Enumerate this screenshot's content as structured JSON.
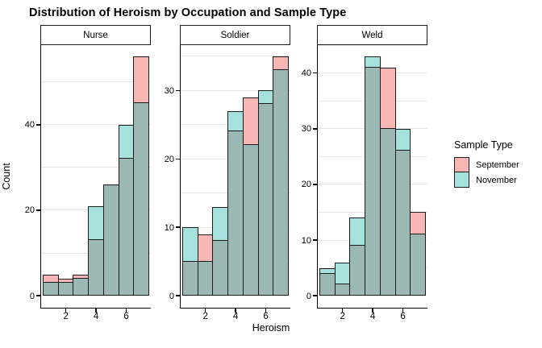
{
  "title": "Distribution of Heroism by Occupation and Sample Type",
  "axes": {
    "x_title": "Heroism",
    "y_title": "Count",
    "x_ticks": [
      2,
      4,
      6
    ]
  },
  "legend": {
    "title": "Sample Type",
    "items": [
      {
        "label": "September",
        "color": "#F8B6B5"
      },
      {
        "label": "November",
        "color": "#A5E1DD"
      }
    ]
  },
  "colors": {
    "september": "#F8B6B5",
    "november": "#A5E1DD",
    "overlap": "#9CB8B4",
    "bar_border": "#1a1a1a",
    "axis_line": "#000000",
    "gridline": "#E7E7E7",
    "strip_background": "#ffffff"
  },
  "chart_data": {
    "type": "bar",
    "subtype": "overlaid-histogram",
    "title": "Distribution of Heroism by Occupation and Sample Type",
    "xlabel": "Heroism",
    "ylabel": "Count",
    "legend_position": "right",
    "grid": "on",
    "x": [
      1,
      2,
      3,
      4,
      5,
      6,
      7
    ],
    "x_ticks": [
      2,
      4,
      6
    ],
    "x_range": [
      0.15,
      7.85
    ],
    "facets": [
      {
        "label": "Nurse",
        "y_ticks": [
          0,
          20,
          40
        ],
        "grid_step": 10,
        "y_max": 56,
        "series": [
          {
            "name": "September",
            "values": [
              5,
              4,
              5,
              13,
              26,
              32,
              56
            ]
          },
          {
            "name": "November",
            "values": [
              3,
              3,
              4,
              21,
              26,
              40,
              45
            ]
          }
        ]
      },
      {
        "label": "Soldier",
        "y_ticks": [
          0,
          10,
          20,
          30
        ],
        "grid_step": 5,
        "y_max": 35,
        "series": [
          {
            "name": "September",
            "values": [
              5,
              9,
              8,
              24,
              29,
              28,
              35
            ]
          },
          {
            "name": "November",
            "values": [
              10,
              5,
              13,
              27,
              22,
              30,
              33
            ]
          }
        ]
      },
      {
        "label": "Weld",
        "y_ticks": [
          0,
          10,
          20,
          30,
          40
        ],
        "grid_step": 5,
        "y_max": 43,
        "series": [
          {
            "name": "September",
            "values": [
              4,
              2,
              9,
              41,
              41,
              26,
              15
            ]
          },
          {
            "name": "November",
            "values": [
              5,
              6,
              14,
              43,
              30,
              30,
              11
            ]
          }
        ]
      }
    ]
  }
}
